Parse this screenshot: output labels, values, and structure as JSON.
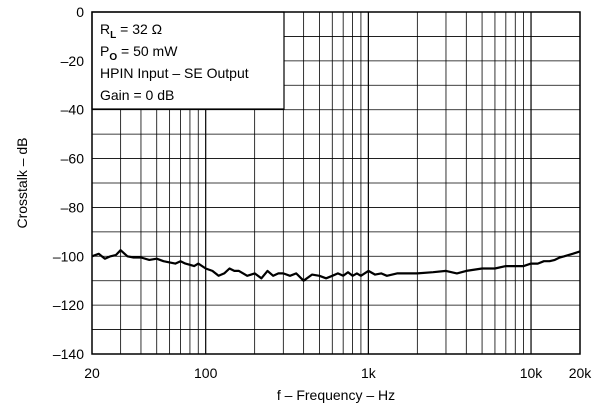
{
  "chart_data": {
    "type": "line",
    "xlabel": "f – Frequency – Hz",
    "ylabel": "Crosstalk – dB",
    "xscale": "log",
    "xlim": [
      20,
      20000
    ],
    "ylim": [
      -140,
      0
    ],
    "grid": true,
    "x_ticks": [
      20,
      100,
      1000,
      10000,
      20000
    ],
    "x_tick_labels": [
      "20",
      "100",
      "1k",
      "10k",
      "20k"
    ],
    "y_ticks": [
      0,
      -20,
      -40,
      -60,
      -80,
      -100,
      -120,
      -140
    ],
    "y_tick_labels": [
      "0",
      "–20",
      "–40",
      "–60",
      "–80",
      "–100",
      "–120",
      "–140"
    ],
    "legend_placement": "top-left",
    "conditions": [
      {
        "main": "R",
        "sub": "L",
        "rest": " = 32 Ω"
      },
      {
        "main": "P",
        "sub": "O",
        "rest": " = 50 mW"
      },
      {
        "main": "HPIN Input – SE Output",
        "sub": "",
        "rest": ""
      },
      {
        "main": "Gain = 0 dB",
        "sub": "",
        "rest": ""
      }
    ],
    "series": [
      {
        "color": "#000000",
        "x": [
          20,
          22,
          24,
          26,
          28,
          30,
          33,
          36,
          40,
          45,
          50,
          55,
          60,
          65,
          70,
          75,
          80,
          85,
          90,
          100,
          110,
          120,
          130,
          140,
          150,
          160,
          170,
          180,
          200,
          220,
          240,
          260,
          280,
          300,
          330,
          360,
          400,
          450,
          500,
          550,
          600,
          650,
          700,
          750,
          800,
          850,
          900,
          1000,
          1100,
          1200,
          1300,
          1500,
          1700,
          2000,
          2500,
          3000,
          3500,
          4000,
          5000,
          6000,
          7000,
          8000,
          9000,
          10000,
          11000,
          12000,
          13000,
          14000,
          15000,
          16000,
          18000,
          20000
        ],
        "y": [
          -100,
          -99,
          -101,
          -100,
          -99.5,
          -97.5,
          -100,
          -100.5,
          -100.5,
          -101.5,
          -101,
          -102,
          -102.5,
          -103,
          -102,
          -103,
          -103.5,
          -104,
          -103,
          -105,
          -106,
          -108,
          -107,
          -105,
          -106,
          -106,
          -107,
          -108,
          -107,
          -109,
          -106,
          -108,
          -107,
          -107,
          -108,
          -107,
          -110,
          -107.5,
          -108,
          -109,
          -108,
          -107,
          -108,
          -106.5,
          -108,
          -107,
          -108,
          -106,
          -107.5,
          -107,
          -108,
          -107,
          -107,
          -107,
          -106.5,
          -106,
          -107,
          -106,
          -105,
          -105,
          -104,
          -104,
          -104,
          -103,
          -103,
          -102,
          -102,
          -101.5,
          -100.5,
          -100,
          -99,
          -98
        ]
      }
    ]
  }
}
